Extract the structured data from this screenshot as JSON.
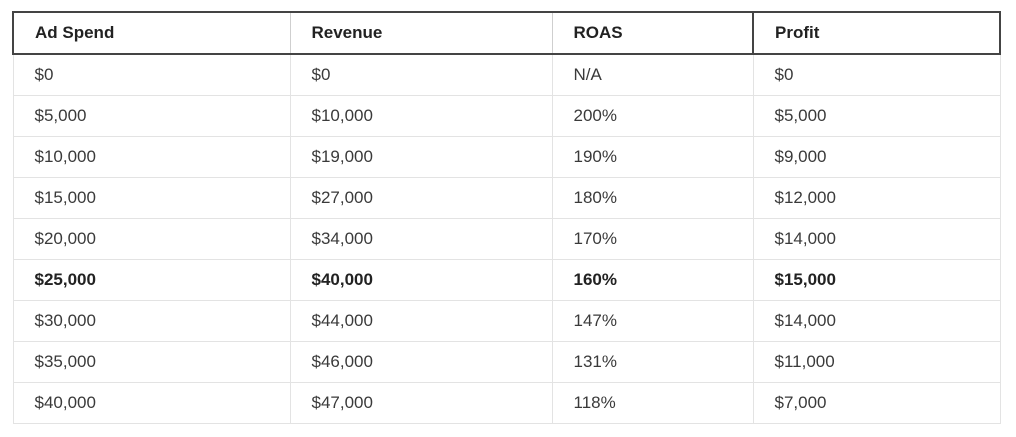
{
  "table": {
    "headers": [
      "Ad Spend",
      "Revenue",
      "ROAS",
      "Profit"
    ],
    "rows": [
      {
        "cells": [
          "$0",
          "$0",
          "N/A",
          "$0"
        ],
        "bold": false
      },
      {
        "cells": [
          "$5,000",
          "$10,000",
          "200%",
          "$5,000"
        ],
        "bold": false
      },
      {
        "cells": [
          "$10,000",
          "$19,000",
          "190%",
          "$9,000"
        ],
        "bold": false
      },
      {
        "cells": [
          "$15,000",
          "$27,000",
          "180%",
          "$12,000"
        ],
        "bold": false
      },
      {
        "cells": [
          "$20,000",
          "$34,000",
          "170%",
          "$14,000"
        ],
        "bold": false
      },
      {
        "cells": [
          "$25,000",
          "$40,000",
          "160%",
          "$15,000"
        ],
        "bold": true
      },
      {
        "cells": [
          "$30,000",
          "$44,000",
          "147%",
          "$14,000"
        ],
        "bold": false
      },
      {
        "cells": [
          "$35,000",
          "$46,000",
          "131%",
          "$11,000"
        ],
        "bold": false
      },
      {
        "cells": [
          "$40,000",
          "$47,000",
          "118%",
          "$7,000"
        ],
        "bold": false
      }
    ]
  }
}
